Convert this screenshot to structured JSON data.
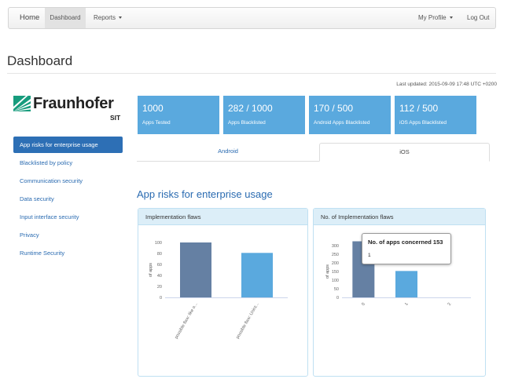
{
  "nav": {
    "home": "Home",
    "dashboard": "Dashboard",
    "reports": "Reports",
    "profile": "My Profile",
    "logout": "Log Out"
  },
  "page": {
    "title": "Dashboard",
    "last_updated": "Last updated: 2015-09-09 17:48 UTC +0200"
  },
  "logo": {
    "name": "Fraunhofer",
    "sub": "SIT"
  },
  "sidebar": {
    "items": [
      {
        "label": "App risks for enterprise usage",
        "active": true
      },
      {
        "label": "Blacklisted by policy"
      },
      {
        "label": "Communication security"
      },
      {
        "label": "Data security"
      },
      {
        "label": "Input interface security"
      },
      {
        "label": "Privacy"
      },
      {
        "label": "Runtime Security"
      }
    ]
  },
  "tiles": [
    {
      "value": "1000",
      "label": "Apps Tested"
    },
    {
      "value": "282 / 1000",
      "label": "Apps Blacklisted"
    },
    {
      "value": "170 / 500",
      "label": "Android Apps Blacklisted"
    },
    {
      "value": "112 / 500",
      "label": "iOS Apps Blacklisted"
    }
  ],
  "tabs": {
    "android": "Android",
    "ios": "iOS",
    "active": "ios"
  },
  "section_title": "App risks for enterprise usage",
  "colors": {
    "accent": "#2d6fb5",
    "tile": "#5aa9de",
    "bar_dark": "#6580a3",
    "bar_light": "#5aa9de",
    "panel_head": "#dceef8"
  },
  "panels": {
    "left_title": "Implementation flaws",
    "right_title": "No. of Implementation flaws"
  },
  "tooltip": {
    "title": "No. of apps concerned 153",
    "value": "1"
  },
  "chart_data": [
    {
      "type": "bar",
      "categories": [
        "possible flaw: like o...",
        "possible flaw: Unint..."
      ],
      "values": [
        100,
        81
      ],
      "ylabel": "of apps",
      "ylim": [
        0,
        100
      ],
      "yticks": [
        0,
        20,
        40,
        60,
        80,
        100
      ],
      "colors": [
        "#6580a3",
        "#5aa9de"
      ],
      "grid": false
    },
    {
      "type": "bar",
      "categories": [
        "0",
        "1",
        "2"
      ],
      "values": [
        325,
        153,
        0
      ],
      "ylabel": "of apps",
      "ylim": [
        0,
        300
      ],
      "yticks": [
        0,
        50,
        100,
        150,
        200,
        250,
        300
      ],
      "colors": [
        "#6580a3",
        "#5aa9de",
        "#5aa9de"
      ],
      "grid": false
    }
  ]
}
